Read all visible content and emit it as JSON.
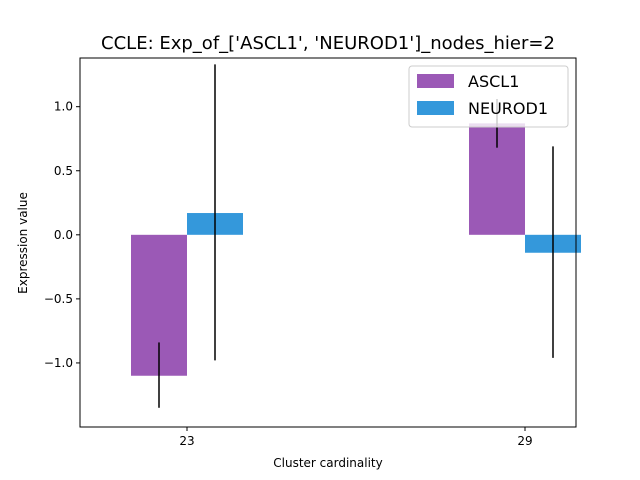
{
  "chart_data": {
    "type": "bar",
    "title": "CCLE: Exp_of_['ASCL1', 'NEUROD1']_nodes_hier=2",
    "xlabel": "Cluster cardinality",
    "ylabel": "Expression value",
    "categories": [
      "23",
      "29"
    ],
    "ylim": [
      -1.5,
      1.38
    ],
    "yticks": [
      -1.0,
      -0.5,
      0.0,
      0.5,
      1.0
    ],
    "ytick_labels": [
      "−1.0",
      "−0.5",
      "0.0",
      "0.5",
      "1.0"
    ],
    "grid": false,
    "legend_position": "top-right",
    "series": [
      {
        "name": "ASCL1",
        "color": "#9b59b6",
        "values": [
          -1.1,
          0.87
        ],
        "error_low": [
          -1.35,
          0.68
        ],
        "error_high": [
          -0.84,
          1.06
        ]
      },
      {
        "name": "NEUROD1",
        "color": "#3498db",
        "values": [
          0.17,
          -0.14
        ],
        "error_low": [
          -0.98,
          -0.96
        ],
        "error_high": [
          1.33,
          0.69
        ]
      }
    ]
  }
}
